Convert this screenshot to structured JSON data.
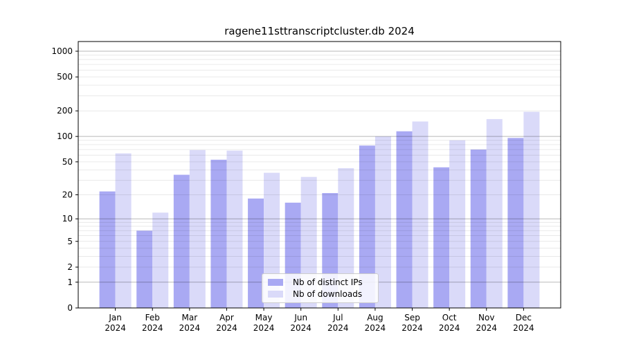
{
  "chart_data": {
    "type": "bar",
    "title": "ragene11sttranscriptcluster.db 2024",
    "categories": [
      "Jan",
      "Feb",
      "Mar",
      "Apr",
      "May",
      "Jun",
      "Jul",
      "Aug",
      "Sep",
      "Oct",
      "Nov",
      "Dec"
    ],
    "year_label": "2024",
    "series": [
      {
        "name": "Nb of distinct IPs",
        "color": "#a9a9f3",
        "values": [
          22,
          7,
          35,
          53,
          18,
          16,
          21,
          78,
          115,
          43,
          70,
          96
        ]
      },
      {
        "name": "Nb of downloads",
        "color": "#dadaf9",
        "values": [
          63,
          12,
          69,
          68,
          37,
          33,
          42,
          100,
          150,
          90,
          160,
          195
        ]
      }
    ],
    "y_scale": "log1p",
    "y_ticks": [
      0,
      1,
      2,
      5,
      10,
      20,
      50,
      100,
      200,
      500,
      1000
    ],
    "y_major_gridlines": [
      1,
      10,
      100,
      1000
    ],
    "y_minor_gridlines": [
      2,
      3,
      4,
      5,
      6,
      7,
      8,
      9,
      20,
      30,
      40,
      50,
      60,
      70,
      80,
      90,
      200,
      300,
      400,
      500,
      600,
      700,
      800,
      900
    ],
    "ylim": [
      0,
      1300
    ],
    "grid": true,
    "legend_position": "bottom-center",
    "axis_color": "#000000",
    "background_color": "#ffffff"
  }
}
